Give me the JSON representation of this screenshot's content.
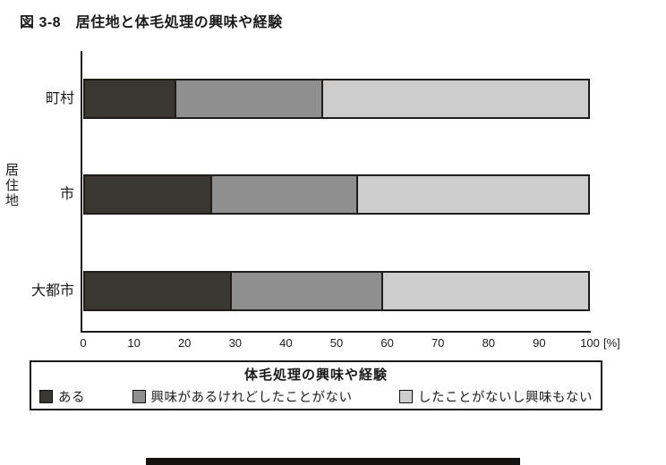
{
  "chart_data": {
    "type": "bar",
    "orientation": "horizontal",
    "stacked": true,
    "title": "図 3-8　居住地と体毛処理の興味や経験",
    "ylabel": "居住地",
    "xlabel": "[%]",
    "xlim": [
      0,
      100
    ],
    "x_ticks": [
      0,
      10,
      20,
      30,
      40,
      50,
      60,
      70,
      80,
      90,
      100
    ],
    "grid": false,
    "categories": [
      "町村",
      "市",
      "大都市"
    ],
    "series": [
      {
        "name": "ある",
        "color": "#3a3632",
        "values": [
          18,
          25,
          29
        ]
      },
      {
        "name": "興味があるけれどしたことがない",
        "color": "#8f8f8f",
        "values": [
          29,
          29,
          30
        ]
      },
      {
        "name": "したことがないし興味もない",
        "color": "#cdcdcd",
        "values": [
          53,
          46,
          41
        ]
      }
    ],
    "legend_title": "体毛処理の興味や経験",
    "legend_position": "bottom"
  }
}
